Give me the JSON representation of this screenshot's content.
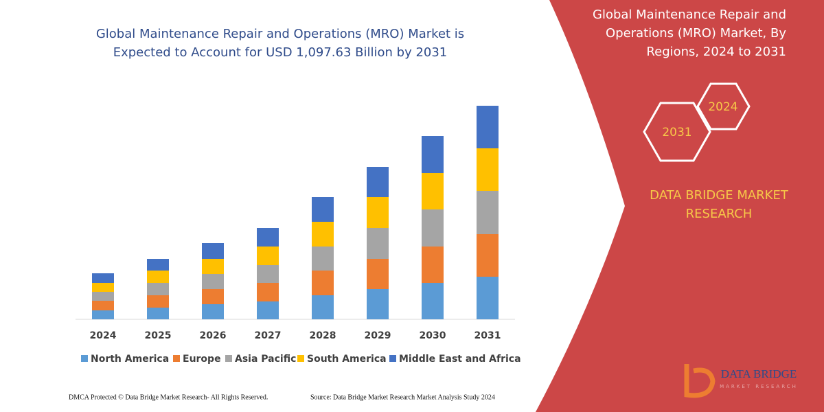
{
  "chart_data": {
    "type": "stacked_bar",
    "title": [
      "Global Maintenance Repair and Operations (MRO) Market is",
      "Expected to Account for USD 1,097.63 Billion by 2031"
    ],
    "categories": [
      "2024",
      "2025",
      "2026",
      "2027",
      "2028",
      "2029",
      "2030",
      "2031"
    ],
    "series": [
      {
        "name": "North America",
        "color": "#5b9bd5",
        "values": [
          13,
          17,
          22,
          26,
          35,
          44,
          53,
          62
        ]
      },
      {
        "name": "Europe",
        "color": "#ed7d31",
        "values": [
          14,
          18,
          22,
          27,
          36,
          44,
          53,
          62
        ]
      },
      {
        "name": "Asia Pacific",
        "color": "#a5a5a5",
        "values": [
          13,
          18,
          22,
          26,
          35,
          45,
          54,
          63
        ]
      },
      {
        "name": "South America",
        "color": "#ffc000",
        "values": [
          13,
          18,
          22,
          27,
          36,
          45,
          53,
          62
        ]
      },
      {
        "name": "Middle East and Africa",
        "color": "#4472c4",
        "values": [
          14,
          17,
          23,
          27,
          36,
          44,
          54,
          62
        ]
      }
    ],
    "legend": "bottom"
  },
  "panel": {
    "title": [
      "Global Maintenance Repair and",
      "Operations (MRO) Market, By",
      "Regions, 2024 to 2031"
    ],
    "badges": [
      "2031",
      "2024"
    ],
    "brand": [
      "DATA BRIDGE MARKET",
      "RESEARCH"
    ]
  },
  "logo": {
    "name": "DATA BRIDGE",
    "tagline": "MARKET RESEARCH"
  },
  "footer": {
    "left": "DMCA Protected © Data Bridge Market Research-  All Rights Reserved.",
    "right": "Source: Data Bridge Market Research  Market Analysis Study 2024"
  }
}
